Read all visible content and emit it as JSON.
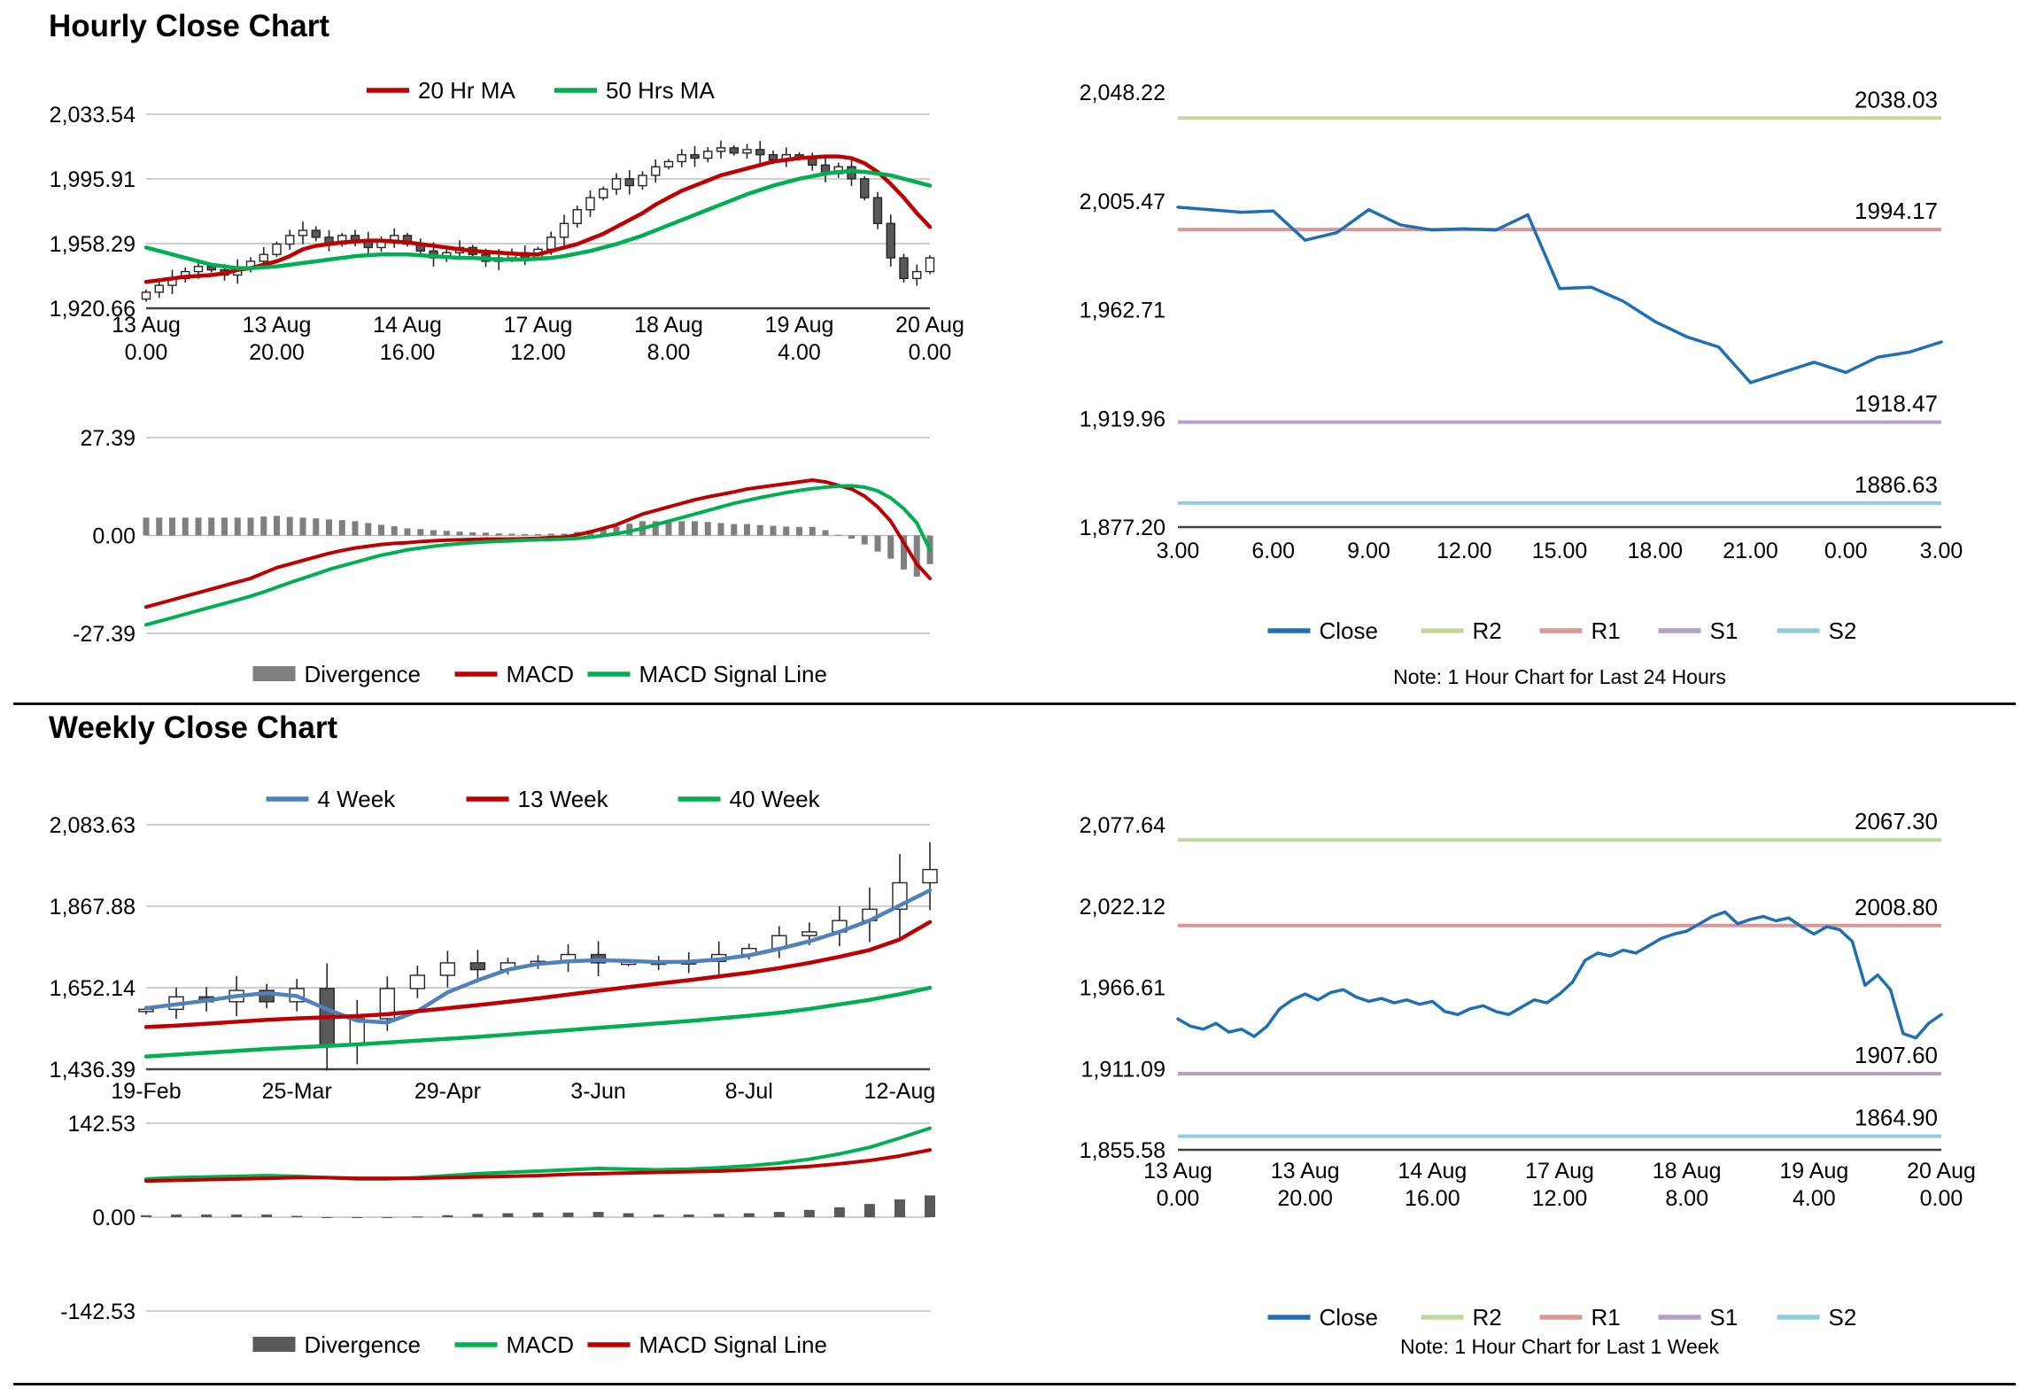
{
  "sections": {
    "hourly": {
      "title": "Hourly Close Chart"
    },
    "weekly": {
      "title": "Weekly Close Chart"
    }
  },
  "chart_data": [
    {
      "id": "hourly_candle",
      "type": "candlestick",
      "ylim": [
        1920.66,
        2033.54
      ],
      "y_tick_labels": [
        "2,033.54",
        "1,995.91",
        "1,958.29",
        "1,920.66"
      ],
      "x_tick_index": [
        0,
        10,
        20,
        30,
        40,
        50,
        60
      ],
      "x_tick_labels": [
        [
          "13 Aug",
          "0.00"
        ],
        [
          "13 Aug",
          "20.00"
        ],
        [
          "14 Aug",
          "16.00"
        ],
        [
          "17 Aug",
          "12.00"
        ],
        [
          "18 Aug",
          "8.00"
        ],
        [
          "19 Aug",
          "4.00"
        ],
        [
          "20 Aug",
          "0.00"
        ]
      ],
      "close": [
        1930,
        1934,
        1938,
        1942,
        1945,
        1943,
        1940,
        1944,
        1948,
        1952,
        1958,
        1963,
        1966,
        1962,
        1958,
        1963,
        1960,
        1956,
        1960,
        1963,
        1958,
        1954,
        1950,
        1953,
        1956,
        1952,
        1948,
        1950,
        1953,
        1950,
        1955,
        1962,
        1970,
        1978,
        1985,
        1990,
        1996,
        1992,
        1998,
        2003,
        2006,
        2010,
        2008,
        2012,
        2014,
        2011,
        2013,
        2010,
        2007,
        2010,
        2008,
        2004,
        1999,
        2003,
        1996,
        1985,
        1970,
        1950,
        1938,
        1942,
        1950
      ],
      "series": [
        {
          "name": "20 Hr MA",
          "color": "#c00000",
          "values": [
            1936,
            1937,
            1938,
            1939,
            1939.5,
            1940,
            1941,
            1943,
            1944,
            1946,
            1948,
            1951,
            1955,
            1957,
            1958,
            1959,
            1959.5,
            1960,
            1960,
            1959.5,
            1959,
            1958,
            1957,
            1956,
            1955,
            1954,
            1953.5,
            1953,
            1952.5,
            1952,
            1952,
            1954,
            1956,
            1958,
            1961,
            1964,
            1968,
            1972,
            1976,
            1981,
            1985,
            1989,
            1992,
            1995,
            1998,
            2000,
            2002,
            2004,
            2006,
            2007,
            2008,
            2008.5,
            2009,
            2009,
            2008,
            2005,
            2000,
            1993,
            1985,
            1976,
            1968
          ]
        },
        {
          "name": "50 Hrs MA",
          "color": "#00b050",
          "values": [
            1956,
            1954,
            1952,
            1950,
            1948,
            1946,
            1945,
            1944,
            1944,
            1944.5,
            1945,
            1946,
            1947,
            1948,
            1949,
            1950,
            1951,
            1951.5,
            1952,
            1952,
            1952,
            1951.5,
            1951,
            1950.5,
            1950,
            1950,
            1949.5,
            1949,
            1949,
            1949,
            1949.5,
            1950,
            1951,
            1952.5,
            1954,
            1956,
            1958,
            1960.5,
            1963,
            1966,
            1969,
            1972,
            1975,
            1978,
            1981,
            1984,
            1987,
            1989.5,
            1992,
            1994,
            1996,
            1997.5,
            1999,
            2000,
            2000.5,
            2000,
            1999,
            1998,
            1996,
            1994,
            1992
          ]
        }
      ]
    },
    {
      "id": "hourly_macd",
      "type": "macd",
      "ylim": [
        -27.39,
        27.39
      ],
      "y_tick_labels": [
        "27.39",
        "0.00",
        "-27.39"
      ],
      "divergence_label": "Divergence",
      "divergence_color": "#7f7f7f",
      "divergence": [
        5,
        5,
        5,
        5,
        5,
        5,
        5,
        5,
        5,
        5.3,
        5.5,
        5.2,
        5,
        4.8,
        4.5,
        4.3,
        4,
        3.5,
        3,
        2.6,
        2,
        1.8,
        1.5,
        1.3,
        1.1,
        0.9,
        0.8,
        0.6,
        0.5,
        0.4,
        0.4,
        0.5,
        0.5,
        1,
        1.5,
        2,
        2.5,
        3.3,
        4,
        4,
        4,
        4,
        4,
        3.8,
        3.5,
        3.2,
        3.2,
        2.9,
        2.7,
        2.5,
        2.4,
        2.4,
        1.5,
        0.2,
        -0.9,
        -2.5,
        -4.5,
        -6.5,
        -9.5,
        -11.5,
        -8
      ],
      "macd": {
        "name": "MACD",
        "color": "#c00000",
        "values": [
          -20,
          -19,
          -18,
          -17,
          -16,
          -15,
          -14,
          -13,
          -12,
          -10.5,
          -9,
          -8,
          -7,
          -6,
          -5,
          -4.2,
          -3.5,
          -3,
          -2.5,
          -2.2,
          -2,
          -1.7,
          -1.5,
          -1.3,
          -1.2,
          -1.1,
          -1,
          -1,
          -1,
          -0.9,
          -0.8,
          -0.6,
          -0.5,
          0.2,
          1,
          2,
          3,
          4.5,
          6,
          7,
          8,
          9,
          10,
          10.8,
          11.5,
          12.2,
          13,
          13.5,
          14,
          14.5,
          15,
          15.5,
          15,
          14,
          13,
          11,
          8,
          4,
          -2,
          -8,
          -12
        ]
      },
      "signal": {
        "name": "MACD Signal Line",
        "color": "#00b050",
        "values": [
          -25,
          -24,
          -23,
          -22,
          -21,
          -20,
          -19,
          -18,
          -17,
          -15.8,
          -14.5,
          -13.2,
          -12,
          -10.8,
          -9.5,
          -8.5,
          -7.5,
          -6.5,
          -5.5,
          -4.8,
          -4,
          -3.5,
          -3,
          -2.6,
          -2.3,
          -2,
          -1.8,
          -1.6,
          -1.5,
          -1.3,
          -1.2,
          -1.1,
          -1,
          -0.8,
          -0.5,
          0,
          0.5,
          1.2,
          2,
          3,
          4,
          5,
          6,
          7,
          8,
          9,
          9.8,
          10.6,
          11.3,
          12,
          12.6,
          13.1,
          13.5,
          13.8,
          13.9,
          13.5,
          12.5,
          10.5,
          7.5,
          3.5,
          -4
        ]
      }
    },
    {
      "id": "hourly_close_line",
      "type": "line",
      "ylim": [
        1877.2,
        2048.22
      ],
      "y_tick_labels": [
        "2,048.22",
        "2,005.47",
        "1,962.71",
        "1,919.96",
        "1,877.20"
      ],
      "x_tick_index": [
        0,
        3,
        6,
        9,
        12,
        15,
        18,
        21,
        24
      ],
      "x_tick_labels": [
        "3.00",
        "6.00",
        "9.00",
        "12.00",
        "15.00",
        "18.00",
        "21.00",
        "0.00",
        "3.00"
      ],
      "close": {
        "name": "Close",
        "color": "#1f6fb5",
        "values": [
          2003,
          2002,
          2001,
          2001.5,
          1990,
          1993,
          2002,
          1996,
          1994,
          1994.5,
          1994,
          2000,
          1971,
          1971.5,
          1966,
          1958,
          1952,
          1948,
          1934,
          1938,
          1942,
          1938,
          1944,
          1946,
          1950
        ]
      },
      "levels": [
        {
          "name": "R2",
          "label": "2038.03",
          "value": 2038.03,
          "color": "#c4d79b"
        },
        {
          "name": "R1",
          "label": "1994.17",
          "value": 1994.17,
          "color": "#d99795"
        },
        {
          "name": "S1",
          "label": "1918.47",
          "value": 1918.47,
          "color": "#b2a2c7"
        },
        {
          "name": "S2",
          "label": "1886.63",
          "value": 1886.63,
          "color": "#93cddd"
        }
      ],
      "note": "Note: 1 Hour Chart for Last 24 Hours"
    },
    {
      "id": "weekly_candle",
      "type": "candlestick",
      "ylim": [
        1436.39,
        2083.63
      ],
      "y_tick_labels": [
        "2,083.63",
        "1,867.88",
        "1,652.14",
        "1,436.39"
      ],
      "x_tick_index": [
        0,
        5,
        10,
        15,
        20,
        25
      ],
      "x_tick_labels": [
        "19-Feb",
        "25-Mar",
        "29-Apr",
        "3-Jun",
        "8-Jul",
        "12-Aug"
      ],
      "close": [
        1595,
        1628,
        1615,
        1645,
        1615,
        1650,
        1500,
        1570,
        1650,
        1685,
        1718,
        1700,
        1718,
        1722,
        1740,
        1718,
        1720,
        1715,
        1722,
        1740,
        1756,
        1790,
        1800,
        1830,
        1860,
        1930,
        1965
      ],
      "series": [
        {
          "name": "4 Week",
          "color": "#4f81bd",
          "values": [
            1598,
            1608,
            1618,
            1630,
            1638,
            1630,
            1595,
            1565,
            1560,
            1590,
            1640,
            1672,
            1700,
            1715,
            1722,
            1725,
            1723,
            1720,
            1721,
            1727,
            1738,
            1755,
            1775,
            1800,
            1830,
            1870,
            1910
          ]
        },
        {
          "name": "13 Week",
          "color": "#c00000",
          "values": [
            1548,
            1552,
            1557,
            1562,
            1567,
            1571,
            1574,
            1577,
            1582,
            1590,
            1598,
            1606,
            1615,
            1624,
            1634,
            1644,
            1654,
            1663,
            1672,
            1682,
            1692,
            1704,
            1718,
            1734,
            1752,
            1780,
            1826
          ]
        },
        {
          "name": "40 Week",
          "color": "#00b050",
          "values": [
            1470,
            1475,
            1480,
            1485,
            1490,
            1494,
            1498,
            1502,
            1507,
            1512,
            1517,
            1522,
            1528,
            1534,
            1540,
            1546,
            1552,
            1558,
            1564,
            1571,
            1578,
            1586,
            1596,
            1608,
            1620,
            1635,
            1652
          ]
        }
      ]
    },
    {
      "id": "weekly_macd",
      "type": "macd",
      "ylim": [
        -142.53,
        142.53
      ],
      "y_tick_labels": [
        "142.53",
        "0.00",
        "-142.53"
      ],
      "divergence_label": "Divergence",
      "divergence_color": "#595959",
      "divergence": [
        3,
        4,
        4,
        4,
        4,
        2,
        0,
        -1,
        -1,
        1,
        3,
        5,
        6,
        7,
        7,
        8,
        6,
        4,
        4,
        5,
        6,
        8,
        11,
        15,
        20,
        27,
        33
      ],
      "macd": {
        "name": "MACD",
        "color": "#00b050",
        "values": [
          58,
          60,
          61,
          62,
          63,
          62,
          60,
          58,
          58,
          60,
          63,
          66,
          68,
          70,
          72,
          74,
          73,
          72,
          73,
          75,
          78,
          82,
          88,
          96,
          106,
          120,
          135
        ]
      },
      "signal": {
        "name": "MACD Signal Line",
        "color": "#c00000",
        "values": [
          55,
          56,
          57,
          58,
          59,
          60,
          60,
          59,
          59,
          59,
          60,
          61,
          62,
          63,
          65,
          66,
          67,
          68,
          69,
          70,
          72,
          74,
          77,
          81,
          86,
          93,
          102
        ]
      }
    },
    {
      "id": "weekly_close_line",
      "type": "line",
      "ylim": [
        1855.58,
        2077.64
      ],
      "y_tick_labels": [
        "2,077.64",
        "2,022.12",
        "1,966.61",
        "1,911.09",
        "1,855.58"
      ],
      "x_tick_index": [
        0,
        10,
        20,
        30,
        40,
        50,
        60
      ],
      "x_tick_labels": [
        [
          "13 Aug",
          "0.00"
        ],
        [
          "13 Aug",
          "20.00"
        ],
        [
          "14 Aug",
          "16.00"
        ],
        [
          "17 Aug",
          "12.00"
        ],
        [
          "18 Aug",
          "8.00"
        ],
        [
          "19 Aug",
          "4.00"
        ],
        [
          "20 Aug",
          "0.00"
        ]
      ],
      "close": {
        "name": "Close",
        "color": "#1f6fb5",
        "values": [
          1945,
          1940,
          1938,
          1942,
          1936,
          1938,
          1933,
          1940,
          1952,
          1958,
          1962,
          1958,
          1963,
          1965,
          1960,
          1957,
          1959,
          1956,
          1958,
          1955,
          1957,
          1950,
          1948,
          1952,
          1954,
          1950,
          1948,
          1953,
          1958,
          1956,
          1962,
          1970,
          1985,
          1990,
          1988,
          1992,
          1990,
          1995,
          2000,
          2003,
          2005,
          2010,
          2015,
          2018,
          2010,
          2013,
          2015,
          2012,
          2014,
          2008,
          2003,
          2008,
          2006,
          1998,
          1968,
          1975,
          1965,
          1935,
          1932,
          1942,
          1948
        ]
      },
      "levels": [
        {
          "name": "R2",
          "label": "2067.30",
          "value": 2067.3,
          "color": "#c4d79b"
        },
        {
          "name": "R1",
          "label": "2008.80",
          "value": 2008.8,
          "color": "#d99795"
        },
        {
          "name": "S1",
          "label": "1907.60",
          "value": 1907.6,
          "color": "#b2a2c7"
        },
        {
          "name": "S2",
          "label": "1864.90",
          "value": 1864.9,
          "color": "#93cddd"
        }
      ],
      "note": "Note: 1 Hour Chart for Last 1 Week"
    }
  ]
}
